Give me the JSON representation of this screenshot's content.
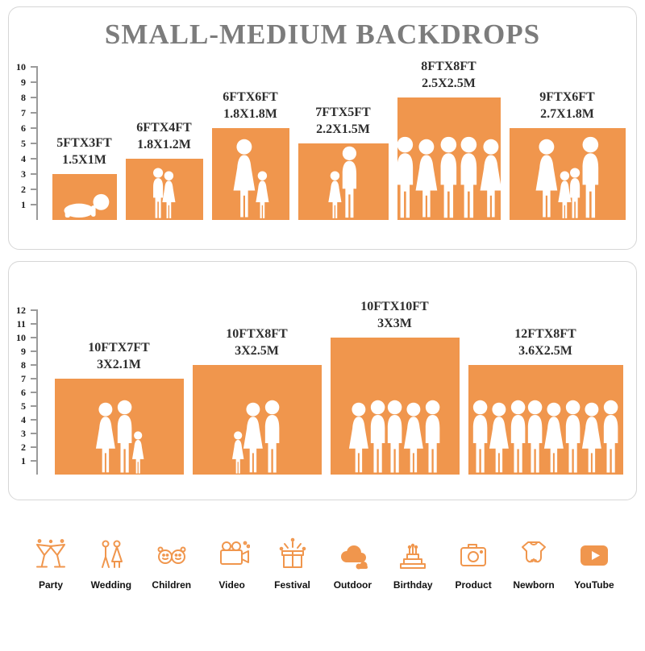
{
  "title": "SMALL-MEDIUM BACKDROPS",
  "colors": {
    "orange": "#F0964D",
    "title_gray": "#7C7C7C",
    "label_dark": "#2E2E2E"
  },
  "panels": [
    {
      "name": "small-medium-backdrops",
      "ruler_max": 10,
      "bars": [
        {
          "size_ft": "5FTX3FT",
          "size_m": "1.5X1M",
          "width_ft": 5,
          "height_ft": 3,
          "figures": [
            "baby"
          ]
        },
        {
          "size_ft": "6FTX4FT",
          "size_m": "1.8X1.2M",
          "width_ft": 6,
          "height_ft": 4,
          "figures": [
            "child",
            "child-dress"
          ]
        },
        {
          "size_ft": "6FTX6FT",
          "size_m": "1.8X1.8M",
          "width_ft": 6,
          "height_ft": 6,
          "figures": [
            "adult-dress",
            "child-dress"
          ]
        },
        {
          "size_ft": "7FTX5FT",
          "size_m": "2.2X1.5M",
          "width_ft": 7,
          "height_ft": 5,
          "figures": [
            "child-dress",
            "adult"
          ]
        },
        {
          "size_ft": "8FTX8FT",
          "size_m": "2.5X2.5M",
          "width_ft": 8,
          "height_ft": 8,
          "figures": [
            "adult",
            "adult-dress",
            "adult",
            "adult",
            "adult-dress"
          ]
        },
        {
          "size_ft": "9FTX6FT",
          "size_m": "2.7X1.8M",
          "width_ft": 9,
          "height_ft": 6,
          "figures": [
            "adult-dress",
            "child-dress",
            "child",
            "adult"
          ]
        }
      ]
    },
    {
      "name": "large-backdrops",
      "ruler_max": 12,
      "bars": [
        {
          "size_ft": "10FTX7FT",
          "size_m": "3X2.1M",
          "width_ft": 10,
          "height_ft": 7,
          "figures": [
            "adult-dress",
            "adult",
            "child-dress"
          ]
        },
        {
          "size_ft": "10FTX8FT",
          "size_m": "3X2.5M",
          "width_ft": 10,
          "height_ft": 8,
          "figures": [
            "child-dress",
            "adult-dress",
            "adult"
          ]
        },
        {
          "size_ft": "10FTX10FT",
          "size_m": "3X3M",
          "width_ft": 10,
          "height_ft": 10,
          "figures": [
            "adult-dress",
            "adult",
            "adult",
            "adult-dress",
            "adult"
          ]
        },
        {
          "size_ft": "12FTX8FT",
          "size_m": "3.6X2.5M",
          "width_ft": 12,
          "height_ft": 8,
          "figures": [
            "adult",
            "adult-dress",
            "adult",
            "adult",
            "adult-dress",
            "adult",
            "adult-dress",
            "adult"
          ]
        }
      ]
    }
  ],
  "categories": [
    {
      "icon": "party-icon",
      "label": "Party"
    },
    {
      "icon": "wedding-icon",
      "label": "Wedding"
    },
    {
      "icon": "children-icon",
      "label": "Children"
    },
    {
      "icon": "video-icon",
      "label": "Video"
    },
    {
      "icon": "festival-icon",
      "label": "Festival"
    },
    {
      "icon": "outdoor-icon",
      "label": "Outdoor"
    },
    {
      "icon": "birthday-icon",
      "label": "Birthday"
    },
    {
      "icon": "product-icon",
      "label": "Product"
    },
    {
      "icon": "newborn-icon",
      "label": "Newborn"
    },
    {
      "icon": "youtube-icon",
      "label": "YouTube"
    }
  ]
}
